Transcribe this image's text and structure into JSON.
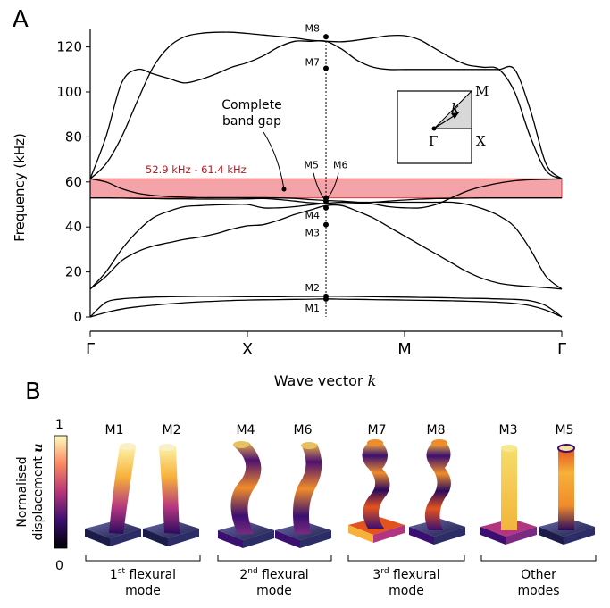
{
  "panel_a_label": "A",
  "panel_b_label": "B",
  "chart_data": {
    "type": "line",
    "ylabel": "Frequency (kHz)",
    "xlabel_prefix": "Wave vector ",
    "xlabel_symbol": "k",
    "ylim": [
      0,
      125
    ],
    "yticks": [
      0,
      20,
      40,
      60,
      80,
      100,
      120
    ],
    "x_ticks": [
      "Γ",
      "X",
      "M",
      "Γ"
    ],
    "x": [
      0,
      0.1,
      0.2,
      0.3,
      0.4,
      0.5,
      0.6,
      0.7,
      0.8,
      0.9,
      1.0,
      1.1,
      1.2,
      1.3,
      1.4,
      1.5,
      1.6,
      1.7,
      1.8,
      1.9,
      2.0,
      2.1,
      2.2,
      2.3,
      2.4,
      2.5,
      2.6,
      2.7,
      2.8,
      2.9,
      3.0
    ],
    "series": [
      {
        "values": [
          0,
          2,
          3.5,
          4.5,
          5.2,
          5.8,
          6.3,
          6.7,
          7.0,
          7.3,
          7.5,
          7.6,
          7.7,
          7.8,
          7.9,
          8.0,
          7.9,
          7.8,
          7.7,
          7.6,
          7.5,
          7.4,
          7.3,
          7.2,
          7.0,
          6.8,
          6.5,
          6.0,
          5.0,
          3.0,
          0
        ]
      },
      {
        "values": [
          0,
          6.5,
          8.0,
          8.5,
          8.8,
          9.0,
          9.1,
          9.2,
          9.2,
          9.1,
          9.0,
          9.0,
          9.0,
          9.1,
          9.1,
          9.2,
          9.2,
          9.1,
          9.0,
          8.9,
          8.8,
          8.7,
          8.6,
          8.5,
          8.3,
          8.2,
          8.0,
          7.8,
          7.2,
          5.0,
          0
        ]
      },
      {
        "values": [
          12.4,
          18,
          25,
          29,
          31.5,
          33,
          34.5,
          35.5,
          37,
          39,
          40.5,
          41,
          43,
          45.5,
          47.5,
          49.5,
          49.5,
          47,
          44,
          40,
          36,
          32,
          28,
          24,
          20,
          17,
          15,
          14,
          13.5,
          13,
          12.4
        ]
      },
      {
        "values": [
          12.4,
          20,
          30,
          38,
          44,
          47,
          49,
          49.5,
          49.8,
          50,
          50,
          48.5,
          48.5,
          49,
          49.8,
          50.5,
          51,
          51,
          51,
          51,
          51,
          51,
          51,
          51,
          50,
          48,
          45,
          40,
          30,
          18,
          12.4
        ]
      },
      {
        "values": [
          52.9,
          52.9,
          52.8,
          52.7,
          52.6,
          52.5,
          52.5,
          52.4,
          52.4,
          52.4,
          52.5,
          52.6,
          52.2,
          51.5,
          50.8,
          50.3,
          50.2,
          50.5,
          51.0,
          51.5,
          52.0,
          52.4,
          52.6,
          52.7,
          52.8,
          52.9,
          52.9,
          52.9,
          52.9,
          52.9,
          52.9
        ]
      },
      {
        "values": [
          61.4,
          60,
          57,
          55,
          54,
          53.5,
          53.2,
          53.0,
          53.0,
          53.0,
          53.0,
          53.0,
          52.9,
          52.7,
          52.2,
          51.8,
          51.5,
          51.0,
          50.2,
          49.0,
          48.5,
          48.5,
          50.0,
          53.0,
          56.0,
          58.0,
          59.5,
          60.5,
          61.0,
          61.2,
          61.4
        ]
      },
      {
        "values": [
          61.4,
          80,
          104,
          110,
          108,
          106,
          104,
          105.5,
          108,
          111,
          113,
          116,
          120,
          122.5,
          122.5,
          122.5,
          119,
          114,
          111,
          110,
          110,
          110,
          110,
          110,
          110,
          110,
          110,
          110,
          92,
          68,
          61.4
        ]
      },
      {
        "values": [
          61.4,
          68,
          80,
          96,
          111,
          120,
          124.5,
          126,
          126.5,
          126.5,
          126,
          125.3,
          124.7,
          124,
          123,
          122.5,
          122.3,
          123,
          124,
          125,
          125,
          123,
          119,
          115,
          112,
          111,
          110,
          100,
          80,
          65,
          61.4
        ]
      }
    ],
    "band_gap": {
      "lower": 52.9,
      "upper": 61.4,
      "label": "52.9 kHz - 61.4 kHz",
      "annotation_line1": "Complete",
      "annotation_line2": "band gap"
    },
    "marker_x": 1.5,
    "mode_points": [
      {
        "label": "M1",
        "y": 8.0
      },
      {
        "label": "M2",
        "y": 9.2
      },
      {
        "label": "M3",
        "y": 41.0
      },
      {
        "label": "M4",
        "y": 48.5
      },
      {
        "label": "M5",
        "y": 51.5
      },
      {
        "label": "M6",
        "y": 52.8
      },
      {
        "label": "M7",
        "y": 110.5
      },
      {
        "label": "M8",
        "y": 124.5
      }
    ],
    "inset_labels": {
      "gamma": "Γ",
      "x": "X",
      "m": "M",
      "k": "k"
    }
  },
  "colorbar": {
    "label_line1": "Normalised",
    "label_line2": "displacement",
    "symbol": "u",
    "max": "1",
    "min": "0"
  },
  "mode_groups": [
    {
      "modes": [
        "M1",
        "M2"
      ],
      "title_main": "1",
      "title_sup": "st",
      "title_rest": " flexural",
      "title_line2": "mode"
    },
    {
      "modes": [
        "M4",
        "M6"
      ],
      "title_main": "2",
      "title_sup": "nd",
      "title_rest": " flexural",
      "title_line2": "mode"
    },
    {
      "modes": [
        "M7",
        "M8"
      ],
      "title_main": "3",
      "title_sup": "rd",
      "title_rest": " flexural",
      "title_line2": "mode"
    },
    {
      "modes": [
        "M3",
        "M5"
      ],
      "title_main": "",
      "title_sup": "",
      "title_rest": "Other",
      "title_line2": "modes"
    }
  ],
  "colors": {
    "band_fill": "#f4a3a8",
    "band_edge": "#d63a3a",
    "band_text": "#b01f24",
    "curve": "#000000",
    "shape_light": "#f5f0a0",
    "shape_mid": "#e3531e",
    "shape_dark": "#2a0a5e"
  }
}
